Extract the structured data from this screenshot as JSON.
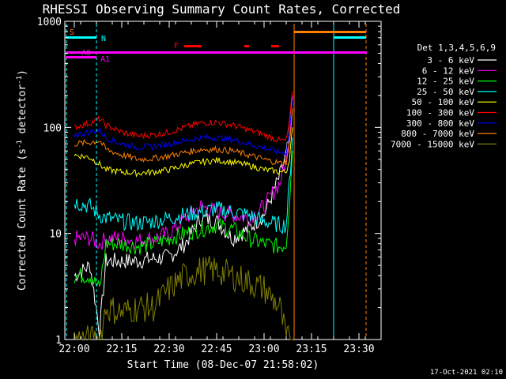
{
  "chart_data": {
    "type": "line",
    "title": "RHESSI Observing Summary Count Rates, Corrected",
    "xlabel": "Start Time (08-Dec-07 21:58:02)",
    "ylabel_main": "Corrected Count Rate (s",
    "ylabel_sup1": "-1",
    "ylabel_mid": " detector",
    "ylabel_sup2": "-1",
    "ylabel_end": ")",
    "yscale": "log",
    "ylim": [
      1,
      1000
    ],
    "xlim": [
      "21:57",
      "23:37"
    ],
    "x_ticks": [
      "22:00",
      "22:15",
      "22:30",
      "22:45",
      "23:00",
      "23:15",
      "23:30"
    ],
    "y_ticks": [
      "1",
      "10",
      "100",
      "1000"
    ],
    "legend_title": "Det 1,3,4,5,6,9",
    "legend_placement": "right",
    "timestamp": "17-Oct-2021 02:10",
    "flag_labels": {
      "s": "S",
      "n": "N",
      "f": "F",
      "a0": "A0",
      "a1": "A1"
    },
    "series": [
      {
        "name": "3 - 6 keV",
        "color": "#ffffff"
      },
      {
        "name": "6 - 12 keV",
        "color": "#ff00ff"
      },
      {
        "name": "12 - 25 keV",
        "color": "#00ff00"
      },
      {
        "name": "25 - 50 keV",
        "color": "#00ffff"
      },
      {
        "name": "50 - 100 keV",
        "color": "#ffff00"
      },
      {
        "name": "100 - 300 keV",
        "color": "#ff0000"
      },
      {
        "name": "300 - 800 keV",
        "color": "#0000ff"
      },
      {
        "name": "800 - 7000 keV",
        "color": "#ff8000"
      },
      {
        "name": "7000 - 15000 keV",
        "color": "#808000"
      }
    ],
    "series_points": [
      {
        "x": [
          "22:00",
          "22:05",
          "22:08",
          "22:10",
          "22:15",
          "22:20",
          "22:25",
          "22:30",
          "22:35",
          "22:40",
          "22:45",
          "22:50",
          "22:55",
          "23:00",
          "23:05",
          "23:07",
          "23:08",
          "23:09"
        ],
        "y": [
          4,
          5,
          1.2,
          5.5,
          5.5,
          5.5,
          5.8,
          6.0,
          8,
          14,
          13,
          9,
          11,
          15,
          35,
          55,
          80,
          200
        ]
      },
      {
        "x": [
          "22:00",
          "22:05",
          "22:08",
          "22:10",
          "22:15",
          "22:20",
          "22:25",
          "22:30",
          "22:35",
          "22:40",
          "22:45",
          "22:50",
          "22:55",
          "23:00",
          "23:05",
          "23:07",
          "23:08",
          "23:09"
        ],
        "y": [
          9,
          9,
          8,
          9,
          9,
          8.5,
          9,
          10,
          14,
          18,
          16,
          15,
          14,
          18,
          30,
          50,
          80,
          200
        ]
      },
      {
        "x": [
          "22:00",
          "22:05",
          "22:08",
          "22:10",
          "22:15",
          "22:20",
          "22:25",
          "22:30",
          "22:35",
          "22:40",
          "22:45",
          "22:50",
          "22:55",
          "23:00",
          "23:05",
          "23:07",
          "23:08",
          "23:09"
        ],
        "y": [
          4,
          4,
          3,
          8,
          8,
          7.5,
          8,
          9,
          10,
          11,
          12,
          11,
          9,
          8,
          7.5,
          8,
          20,
          60
        ]
      },
      {
        "x": [
          "22:00",
          "22:05",
          "22:08",
          "22:10",
          "22:15",
          "22:20",
          "22:25",
          "22:30",
          "22:35",
          "22:40",
          "22:45",
          "22:50",
          "22:55",
          "23:00",
          "23:05",
          "23:07",
          "23:08",
          "23:09"
        ],
        "y": [
          20,
          18,
          15,
          14,
          13,
          12.5,
          13,
          14,
          15,
          16,
          17,
          16,
          15,
          13,
          12,
          12,
          30,
          80
        ]
      },
      {
        "x": [
          "22:00",
          "22:05",
          "22:08",
          "22:10",
          "22:15",
          "22:20",
          "22:25",
          "22:30",
          "22:35",
          "22:40",
          "22:45",
          "22:50",
          "22:55",
          "23:00",
          "23:05",
          "23:07",
          "23:08",
          "23:09"
        ],
        "y": [
          55,
          52,
          45,
          40,
          38,
          37,
          38,
          40,
          44,
          47,
          49,
          47,
          44,
          40,
          38,
          38,
          50,
          100
        ]
      },
      {
        "x": [
          "22:00",
          "22:05",
          "22:08",
          "22:10",
          "22:15",
          "22:20",
          "22:25",
          "22:30",
          "22:35",
          "22:40",
          "22:45",
          "22:50",
          "22:55",
          "23:00",
          "23:05",
          "23:07",
          "23:08",
          "23:09"
        ],
        "y": [
          100,
          110,
          120,
          105,
          90,
          83,
          85,
          90,
          100,
          110,
          112,
          105,
          95,
          85,
          75,
          75,
          110,
          220
        ]
      },
      {
        "x": [
          "22:00",
          "22:05",
          "22:08",
          "22:10",
          "22:15",
          "22:20",
          "22:25",
          "22:30",
          "22:35",
          "22:40",
          "22:45",
          "22:50",
          "22:55",
          "23:00",
          "23:05",
          "23:07",
          "23:08",
          "23:09"
        ],
        "y": [
          85,
          90,
          95,
          80,
          70,
          65,
          66,
          70,
          75,
          80,
          80,
          77,
          70,
          64,
          58,
          58,
          90,
          180
        ]
      },
      {
        "x": [
          "22:00",
          "22:05",
          "22:08",
          "22:10",
          "22:15",
          "22:20",
          "22:25",
          "22:30",
          "22:35",
          "22:40",
          "22:45",
          "22:50",
          "22:55",
          "23:00",
          "23:05",
          "23:07",
          "23:08",
          "23:09"
        ],
        "y": [
          70,
          72,
          75,
          62,
          55,
          50,
          51,
          54,
          58,
          62,
          62,
          60,
          55,
          50,
          46,
          47,
          70,
          150
        ]
      },
      {
        "x": [
          "22:00",
          "22:05",
          "22:08",
          "22:10",
          "22:15",
          "22:20",
          "22:25",
          "22:30",
          "22:35",
          "22:40",
          "22:45",
          "22:50",
          "22:55",
          "23:00",
          "23:05",
          "23:07",
          "23:08",
          "23:09"
        ],
        "y": [
          1,
          1,
          1,
          2,
          1.8,
          2,
          2,
          3,
          4,
          4.5,
          4.5,
          4,
          3.5,
          3,
          2,
          1,
          1,
          1
        ]
      }
    ]
  }
}
